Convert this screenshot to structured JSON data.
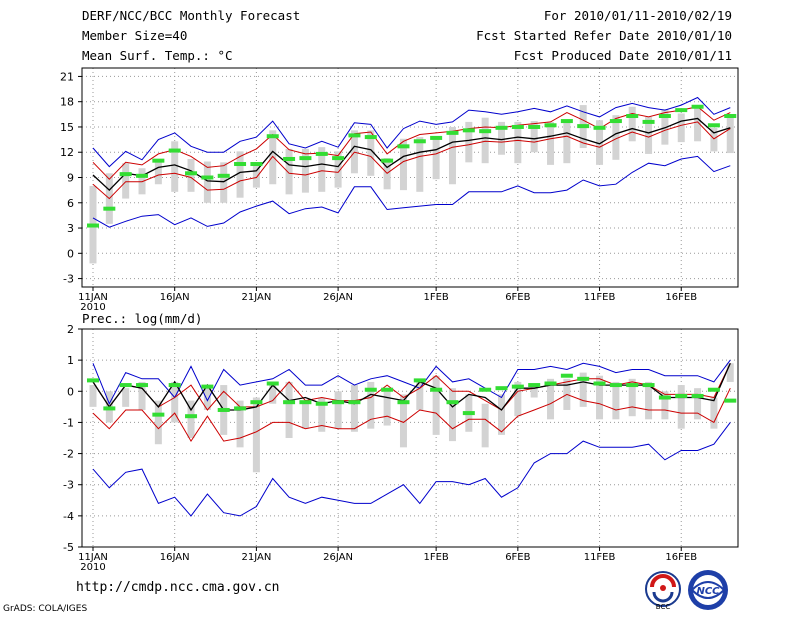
{
  "header": {
    "title": "DERF/NCC/BCC Monthly Forecast",
    "member_size": "Member Size=40",
    "variable": "Mean Surf. Temp.: °C",
    "period": "For 2010/01/11-2010/02/19",
    "fcst_started": "Fcst Started Refer Date 2010/01/10",
    "fcst_produced": "Fcst Produced Date 2010/01/11"
  },
  "footer": {
    "url": "http://cmdp.ncc.cma.gov.cn",
    "grads": "GrADS: COLA/IGES"
  },
  "logos": {
    "bcc": "BCC",
    "ncc": "NCC"
  },
  "colors": {
    "envelope": "#0000cc",
    "spread": "#cc0000",
    "mean": "#000000",
    "ctrl": "#33dd33",
    "box": "#d3d3d3",
    "grid": "#999999"
  },
  "chart_data": [
    {
      "type": "line",
      "title": "Mean Surf. Temp.: °C",
      "x_tick_labels": [
        "11JAN",
        "16JAN",
        "21JAN",
        "26JAN",
        "1FEB",
        "6FEB",
        "11FEB",
        "16FEB"
      ],
      "x_tick_days": [
        0,
        5,
        10,
        15,
        21,
        26,
        31,
        36
      ],
      "x_sublabel": "2010",
      "days": 40,
      "ylim": [
        -4,
        22
      ],
      "y_ticks": [
        -3,
        0,
        3,
        6,
        9,
        12,
        15,
        18,
        21
      ],
      "series": [
        {
          "name": "max",
          "values": [
            12.5,
            10.3,
            12.1,
            11.1,
            13.5,
            14.3,
            12.7,
            12,
            12,
            13.3,
            13.8,
            15.7,
            13,
            12.5,
            13.3,
            12.6,
            15.5,
            15.3,
            12.5,
            14.8,
            15.7,
            15.3,
            15.6,
            17,
            16.8,
            16.5,
            16.8,
            17.2,
            16.8,
            17.5,
            16.8,
            16.2,
            17.3,
            17.8,
            17.3,
            17,
            17.6,
            18.5,
            16.5,
            17.3
          ]
        },
        {
          "name": "upper",
          "values": [
            10.8,
            8.8,
            10.8,
            10.5,
            11.8,
            12.3,
            11.5,
            10.2,
            10.4,
            11.5,
            12.4,
            14.1,
            12.3,
            11.8,
            11.9,
            11.6,
            14.2,
            14.4,
            11.8,
            13.3,
            14.1,
            14.3,
            14.5,
            14.8,
            15,
            14.9,
            15.2,
            15.4,
            15.6,
            16.7,
            15.8,
            14.8,
            16,
            16.6,
            16.2,
            16.7,
            17,
            17.4,
            15.8,
            16.7
          ]
        },
        {
          "name": "mean",
          "values": [
            9.3,
            7.5,
            9.5,
            9.2,
            10.2,
            10.5,
            9.8,
            8.6,
            8.5,
            9.6,
            9.8,
            12.1,
            10.5,
            10.3,
            10.6,
            10.3,
            12.7,
            12.3,
            10.2,
            11.5,
            12,
            12.3,
            13.2,
            13.4,
            13.7,
            13.5,
            13.8,
            13.6,
            13.9,
            14.3,
            13.6,
            13,
            14.2,
            14.8,
            14.3,
            14.9,
            15.7,
            16,
            14.3,
            14.9
          ]
        },
        {
          "name": "lower",
          "values": [
            8.2,
            6.5,
            8.5,
            8.5,
            9.3,
            9.5,
            9,
            7.5,
            7.6,
            8.6,
            9,
            11.5,
            9.5,
            9.3,
            9.8,
            9.6,
            12,
            11.5,
            9.5,
            10.9,
            11.5,
            11.8,
            12.6,
            12.9,
            13.3,
            13.2,
            13.4,
            13.2,
            13.6,
            13.9,
            13.1,
            12.6,
            13.6,
            14.4,
            13.8,
            14.6,
            15.2,
            15.6,
            13.6,
            14.8
          ]
        },
        {
          "name": "min",
          "values": [
            4.2,
            3.1,
            3.8,
            4.4,
            4.6,
            3.4,
            4.2,
            3.2,
            3.6,
            4.9,
            5.6,
            6.2,
            4.7,
            5.3,
            5.5,
            4.8,
            7.9,
            7.9,
            5.2,
            5.4,
            5.6,
            5.8,
            5.8,
            7.3,
            7.3,
            7.3,
            8,
            7.2,
            7.2,
            7.5,
            8.7,
            8,
            8.2,
            9.6,
            10.7,
            10.4,
            11.2,
            11.5,
            9.7,
            10.4
          ]
        },
        {
          "name": "ctrl",
          "values": [
            3.3,
            5.3,
            9.4,
            9.2,
            11,
            12.2,
            9.5,
            9,
            9.2,
            10.6,
            10.6,
            13.9,
            11.2,
            11.3,
            11.8,
            11.3,
            14,
            13.8,
            11,
            12.7,
            13.3,
            13.7,
            14.3,
            14.6,
            14.5,
            14.9,
            15,
            15,
            15.2,
            15.7,
            15.1,
            14.9,
            15.7,
            16.3,
            15.6,
            16.3,
            17,
            17.4,
            15.2,
            16.3
          ]
        },
        {
          "name": "box_top",
          "values": [
            8,
            9.5,
            10.7,
            10.1,
            10.9,
            13.3,
            11.2,
            10.9,
            10.8,
            12.1,
            10.8,
            14.6,
            12.4,
            12.4,
            12.6,
            12.1,
            14.6,
            14.6,
            11.3,
            13.6,
            13.8,
            13.9,
            15,
            15.6,
            16.1,
            15.6,
            15.6,
            15.7,
            15.6,
            15.9,
            17.6,
            15.8,
            16.4,
            17.4,
            16.2,
            17.1,
            16.6,
            17.4,
            14.9,
            16.2
          ]
        },
        {
          "name": "box_bottom",
          "values": [
            -1.2,
            3.5,
            6.5,
            7,
            8.2,
            7.3,
            7.3,
            6,
            6,
            6.6,
            7.8,
            8.2,
            7,
            7.2,
            7.3,
            7.8,
            9.5,
            9.2,
            7.6,
            7.5,
            7.3,
            8.8,
            8.2,
            10.8,
            10.7,
            11.7,
            10.7,
            12,
            10.5,
            10.7,
            12.5,
            10.5,
            11.1,
            13.3,
            11.8,
            12.9,
            13.2,
            13.3,
            12.1,
            11.9
          ]
        }
      ]
    },
    {
      "type": "line",
      "title": "Prec.: log(mm/d)",
      "x_tick_labels": [
        "11JAN",
        "16JAN",
        "21JAN",
        "26JAN",
        "1FEB",
        "6FEB",
        "11FEB",
        "16FEB"
      ],
      "x_tick_days": [
        0,
        5,
        10,
        15,
        21,
        26,
        31,
        36
      ],
      "x_sublabel": "2010",
      "days": 40,
      "ylim": [
        -5,
        2
      ],
      "y_ticks": [
        -5,
        -4,
        -3,
        -2,
        -1,
        0,
        1,
        2
      ],
      "series": [
        {
          "name": "max",
          "values": [
            0.9,
            -0.4,
            0.6,
            0.4,
            0.4,
            -0.2,
            0.8,
            -0.3,
            0.7,
            0.2,
            0.3,
            0.4,
            0.7,
            0.2,
            0.2,
            0.5,
            0.2,
            0.4,
            0.5,
            0.3,
            0.1,
            0.8,
            0.3,
            0.4,
            0.1,
            -0.2,
            0.7,
            0.7,
            0.8,
            0.7,
            0.9,
            0.8,
            0.6,
            0.7,
            0.7,
            0.5,
            0.5,
            0.5,
            0.3,
            1
          ]
        },
        {
          "name": "upper",
          "values": [
            0.3,
            -0.5,
            0.2,
            0.1,
            -0.5,
            -0.2,
            0.2,
            -0.6,
            0,
            -0.5,
            -0.5,
            -0.3,
            0.3,
            -0.3,
            -0.2,
            -0.3,
            -0.3,
            -0.2,
            0.2,
            -0.2,
            0.1,
            0.5,
            0,
            0,
            -0.3,
            -0.6,
            0,
            0.1,
            0.2,
            0.3,
            0.4,
            0.4,
            0.2,
            0.3,
            0.2,
            -0.1,
            -0.1,
            -0.1,
            -0.2,
            0.9
          ]
        },
        {
          "name": "mean",
          "values": [
            0.3,
            -0.5,
            0.2,
            0.1,
            -0.5,
            0.3,
            -0.6,
            0.2,
            -0.6,
            -0.6,
            -0.5,
            0.2,
            -0.3,
            -0.2,
            -0.4,
            -0.3,
            -0.4,
            -0.1,
            -0.2,
            -0.3,
            0.3,
            0.1,
            -0.5,
            -0.1,
            -0.2,
            -0.6,
            0.1,
            0.1,
            0.2,
            0.2,
            0.3,
            0.2,
            0.2,
            0.2,
            0.2,
            -0.2,
            -0.2,
            -0.2,
            -0.3,
            0.9
          ]
        },
        {
          "name": "lower",
          "values": [
            0.3,
            -0.6,
            0.1,
            0,
            -0.6,
            0.2,
            -0.7,
            0.1,
            -0.7,
            -0.6,
            -0.6,
            0.1,
            -0.4,
            -0.3,
            -0.5,
            -0.4,
            -0.4,
            -0.2,
            -0.3,
            -0.4,
            0.2,
            0,
            -0.6,
            -0.2,
            -0.3,
            -0.7,
            0,
            0.1,
            0.1,
            0.1,
            0.2,
            0.1,
            0.2,
            0.1,
            0.1,
            -0.3,
            -0.3,
            -0.3,
            -0.4,
            0.8
          ]
        },
        {
          "name": "low_red",
          "values": [
            -0.7,
            -1.2,
            -0.6,
            -0.6,
            -1.2,
            -0.7,
            -1.6,
            -0.8,
            -1.6,
            -1.5,
            -1.3,
            -1,
            -1,
            -1.2,
            -1.1,
            -1.2,
            -1.2,
            -0.9,
            -0.8,
            -1,
            -0.6,
            -0.7,
            -1.2,
            -0.9,
            -0.9,
            -1.3,
            -0.8,
            -0.6,
            -0.4,
            -0.1,
            -0.3,
            -0.4,
            -0.6,
            -0.5,
            -0.6,
            -0.6,
            -0.7,
            -0.7,
            -1,
            0.1
          ]
        },
        {
          "name": "min",
          "values": [
            -2.5,
            -3.1,
            -2.6,
            -2.5,
            -3.6,
            -3.4,
            -4,
            -3.3,
            -3.9,
            -4,
            -3.7,
            -2.8,
            -3.4,
            -3.6,
            -3.4,
            -3.5,
            -3.6,
            -3.6,
            -3.3,
            -3,
            -3.6,
            -2.9,
            -2.9,
            -3,
            -2.8,
            -3.4,
            -3.1,
            -2.3,
            -2,
            -2,
            -1.6,
            -1.8,
            -1.8,
            -1.8,
            -1.7,
            -2.2,
            -1.9,
            -1.9,
            -1.7,
            -1
          ]
        },
        {
          "name": "ctrl",
          "values": [
            0.35,
            -0.55,
            0.2,
            0.2,
            -0.75,
            0.2,
            -0.8,
            0.15,
            -0.6,
            -0.55,
            -0.35,
            0.25,
            -0.35,
            -0.35,
            -0.4,
            -0.35,
            -0.35,
            0.05,
            0.05,
            -0.35,
            0.35,
            0.05,
            -0.35,
            -0.7,
            0.05,
            0.1,
            0.15,
            0.2,
            0.25,
            0.5,
            0.4,
            0.25,
            0.2,
            0.2,
            0.2,
            -0.2,
            -0.15,
            -0.15,
            0.05,
            -0.3
          ]
        },
        {
          "name": "box_top",
          "values": [
            0.2,
            0,
            0.1,
            0.3,
            -0.3,
            0.3,
            -0.3,
            0.2,
            0.2,
            -0.3,
            -0.2,
            0.3,
            0.3,
            -0.3,
            -0.2,
            0,
            0.2,
            0.3,
            0,
            -0.1,
            0.3,
            0.5,
            0.1,
            -0.1,
            -0.4,
            -0.1,
            0.3,
            0.2,
            0.4,
            0.4,
            0.6,
            0.5,
            0.3,
            0.4,
            0.3,
            0,
            0.2,
            0.1,
            -0.2,
            0.9
          ]
        },
        {
          "name": "box_bottom",
          "values": [
            -0.5,
            -1,
            -0.5,
            -0.6,
            -1.7,
            -1,
            -1.5,
            -0.6,
            -1.4,
            -1.8,
            -2.6,
            -0.4,
            -1.5,
            -1.2,
            -1.3,
            -1.2,
            -1.3,
            -1.2,
            -1.1,
            -1.8,
            -0.6,
            -1.4,
            -1.6,
            -1.3,
            -1.8,
            -1.4,
            -0.8,
            -0.2,
            -0.9,
            -0.6,
            -0.5,
            -0.9,
            -0.9,
            -0.8,
            -0.9,
            -0.9,
            -1.2,
            -0.9,
            -1.2,
            0.3
          ]
        }
      ]
    }
  ]
}
